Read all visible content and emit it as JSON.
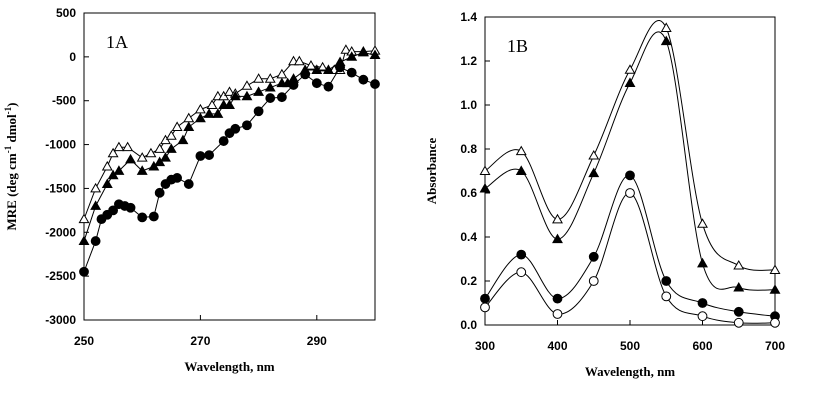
{
  "chart_data": [
    {
      "type": "line",
      "panel_label": "1A",
      "xlabel": "Wavelength, nm",
      "ylabel": "MRE (deg cm",
      "ylabel_sup1": "-1",
      "ylabel_mid": " dmol",
      "ylabel_sup2": "-1",
      "ylabel_end": ")",
      "xlim": [
        250,
        300
      ],
      "ylim": [
        -3000,
        500
      ],
      "xticks": [
        250,
        270,
        290
      ],
      "yticks": [
        -3000,
        -2500,
        -2000,
        -1500,
        -1000,
        -500,
        0,
        500
      ],
      "series": [
        {
          "name": "open-triangle",
          "marker": "triangle-open",
          "x": [
            250,
            252,
            254,
            255,
            256,
            257.5,
            260,
            261.5,
            263,
            264,
            265,
            266,
            268,
            270,
            272,
            273,
            274,
            275,
            276,
            278,
            280,
            282,
            284,
            286,
            287,
            289,
            291,
            293,
            294,
            295,
            296,
            298,
            300
          ],
          "y": [
            -1850,
            -1500,
            -1250,
            -1100,
            -1030,
            -1030,
            -1150,
            -1100,
            -1050,
            -950,
            -900,
            -800,
            -700,
            -600,
            -550,
            -450,
            -450,
            -400,
            -420,
            -330,
            -250,
            -250,
            -200,
            -50,
            -50,
            -100,
            -120,
            -150,
            -150,
            80,
            60,
            60,
            70
          ]
        },
        {
          "name": "filled-triangle",
          "marker": "triangle-filled",
          "x": [
            250,
            252,
            254,
            255,
            256,
            258,
            260,
            262,
            263,
            264,
            265,
            267,
            268,
            270,
            271.5,
            273,
            274,
            275,
            276,
            278,
            280,
            282,
            284,
            285,
            286,
            288,
            290,
            292,
            294,
            296,
            298,
            300
          ],
          "y": [
            -2100,
            -1700,
            -1450,
            -1350,
            -1300,
            -1170,
            -1300,
            -1250,
            -1200,
            -1150,
            -1050,
            -950,
            -800,
            -700,
            -650,
            -650,
            -550,
            -550,
            -450,
            -450,
            -400,
            -350,
            -300,
            -300,
            -250,
            -150,
            -150,
            -150,
            -60,
            0,
            50,
            20
          ]
        },
        {
          "name": "filled-circle",
          "marker": "circle-filled",
          "x": [
            250,
            252,
            253,
            254,
            255,
            256,
            257,
            258,
            260,
            262,
            263,
            264,
            265,
            266,
            268,
            270,
            271.5,
            274,
            275,
            276,
            278,
            280,
            282,
            284,
            286,
            288,
            290,
            292,
            294,
            296,
            298,
            300
          ],
          "y": [
            -2450,
            -2100,
            -1850,
            -1800,
            -1750,
            -1680,
            -1700,
            -1720,
            -1830,
            -1820,
            -1550,
            -1450,
            -1400,
            -1380,
            -1450,
            -1130,
            -1120,
            -960,
            -870,
            -820,
            -780,
            -620,
            -470,
            -460,
            -320,
            -200,
            -300,
            -340,
            -120,
            -180,
            -260,
            -310
          ]
        }
      ]
    },
    {
      "type": "line",
      "panel_label": "1B",
      "xlabel": "Wavelength, nm",
      "ylabel": "Absorbance",
      "xlim": [
        300,
        700
      ],
      "ylim": [
        0.0,
        1.4
      ],
      "xticks": [
        300,
        400,
        500,
        600,
        700
      ],
      "xtick_labels": [
        "300",
        "400",
        "500",
        "600",
        "700"
      ],
      "yticks": [
        0.0,
        0.2,
        0.4,
        0.6,
        0.8,
        1.0,
        1.2,
        1.4
      ],
      "ytick_labels": [
        "0.0",
        "0.2",
        "0.4",
        "0.6",
        "0.8",
        "1.0",
        "1.2",
        "1.4"
      ],
      "series": [
        {
          "name": "open-triangle",
          "marker": "triangle-open",
          "x": [
            300,
            350,
            400,
            450,
            500,
            550,
            600,
            650,
            700
          ],
          "y": [
            0.7,
            0.79,
            0.48,
            0.77,
            1.16,
            1.35,
            0.46,
            0.27,
            0.25
          ]
        },
        {
          "name": "filled-triangle",
          "marker": "triangle-filled",
          "x": [
            300,
            350,
            400,
            450,
            500,
            550,
            600,
            650,
            700
          ],
          "y": [
            0.62,
            0.7,
            0.39,
            0.69,
            1.1,
            1.29,
            0.28,
            0.17,
            0.16
          ]
        },
        {
          "name": "filled-circle",
          "marker": "circle-filled",
          "x": [
            300,
            350,
            400,
            450,
            500,
            550,
            600,
            650,
            700
          ],
          "y": [
            0.12,
            0.32,
            0.12,
            0.31,
            0.68,
            0.2,
            0.1,
            0.06,
            0.04
          ]
        },
        {
          "name": "open-circle",
          "marker": "circle-open",
          "x": [
            300,
            350,
            400,
            450,
            500,
            550,
            600,
            650,
            700
          ],
          "y": [
            0.08,
            0.24,
            0.05,
            0.2,
            0.6,
            0.13,
            0.04,
            0.01,
            0.01
          ]
        }
      ]
    }
  ]
}
